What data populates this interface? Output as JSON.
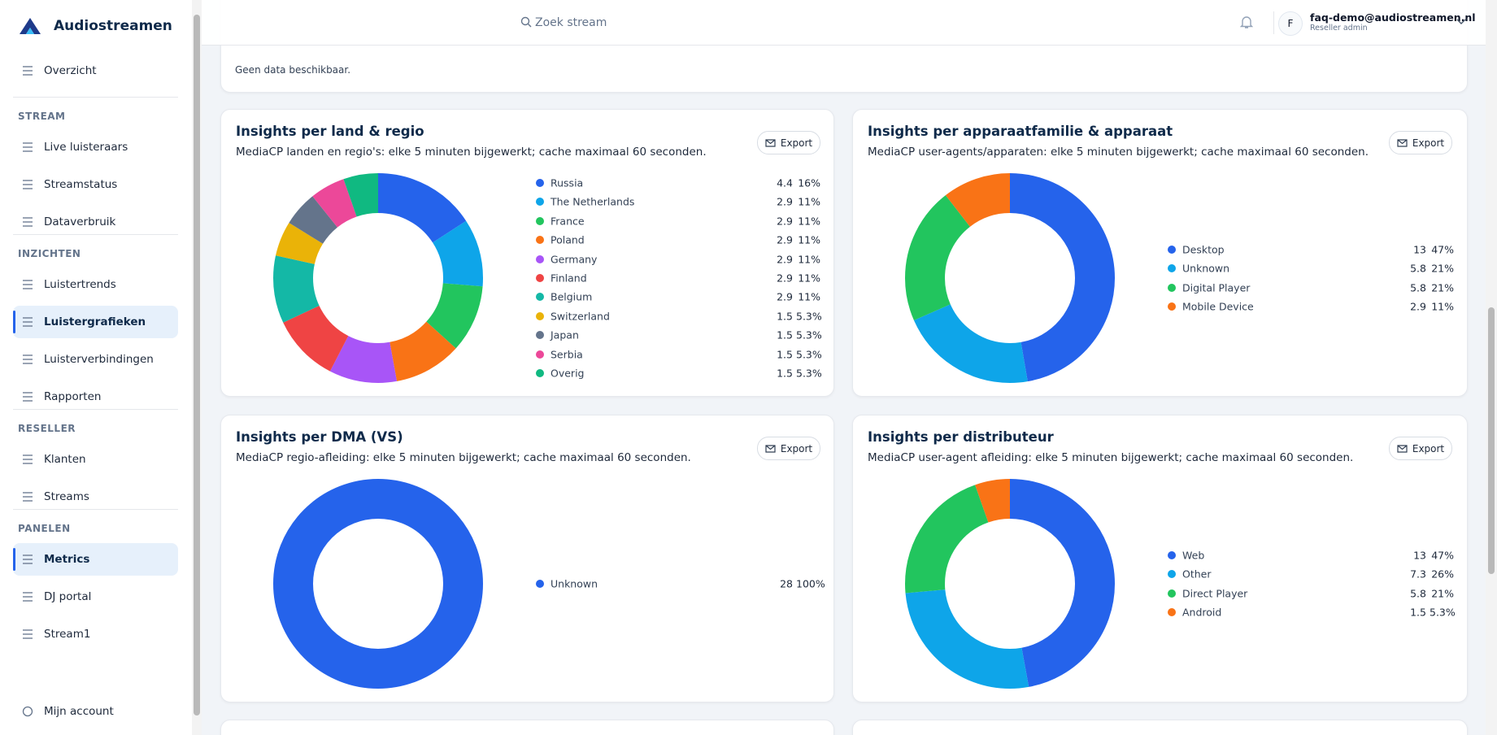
{
  "sidebar": {
    "brand": "Audiostreamen",
    "top": [
      {
        "label": "Overzicht"
      }
    ],
    "sections": [
      {
        "title": "STREAM",
        "items": [
          {
            "label": "Live luisteraars"
          },
          {
            "label": "Streamstatus"
          },
          {
            "label": "Dataverbruik"
          }
        ]
      },
      {
        "title": "INZICHTEN",
        "items": [
          {
            "label": "Luistertrends"
          },
          {
            "label": "Luistergrafieken",
            "active": true
          },
          {
            "label": "Luisterverbindingen"
          },
          {
            "label": "Rapporten"
          }
        ]
      },
      {
        "title": "RESELLER",
        "items": [
          {
            "label": "Klanten"
          },
          {
            "label": "Streams"
          }
        ]
      },
      {
        "title": "PANELEN",
        "items": [
          {
            "label": "Metrics",
            "active": true
          },
          {
            "label": "DJ portal"
          },
          {
            "label": "Stream1"
          }
        ]
      }
    ],
    "account": "Mijn account"
  },
  "header": {
    "search": "Zoek stream",
    "avatar": "F",
    "email": "faq-demo@audiostreamen.nl",
    "role": "Reseller admin"
  },
  "empty_panel": {
    "message": "Geen data beschikbaar."
  },
  "panels": [
    {
      "title": "Insights per land & regio",
      "subtitle": "MediaCP landen en regio's: elke 5 minuten bijgewerkt; cache maximaal 60 seconden.",
      "button": "Export",
      "chart_data": {
        "type": "donut",
        "categories": [
          "Russia",
          "The Netherlands",
          "France",
          "Poland",
          "Germany",
          "Finland",
          "Belgium",
          "Switzerland",
          "Japan",
          "Serbia",
          "Overig"
        ],
        "values": [
          4.4,
          2.9,
          2.9,
          2.9,
          2.9,
          2.9,
          2.9,
          1.5,
          1.5,
          1.5,
          1.5
        ],
        "shares": [
          "16%",
          "11%",
          "11%",
          "11%",
          "11%",
          "11%",
          "11%",
          "5.3%",
          "5.3%",
          "5.3%",
          "5.3%"
        ],
        "colors": [
          "#2563eb",
          "#0ea5e9",
          "#22c55e",
          "#f97316",
          "#a855f7",
          "#ef4444",
          "#14b8a6",
          "#eab308",
          "#64748b",
          "#ec4899",
          "#10b981"
        ]
      }
    },
    {
      "title": "Insights per apparaatfamilie & apparaat",
      "subtitle": "MediaCP user-agents/apparaten: elke 5 minuten bijgewerkt; cache maximaal 60 seconden.",
      "button": "Export",
      "chart_data": {
        "type": "donut",
        "categories": [
          "Desktop",
          "Unknown",
          "Digital Player",
          "Mobile Device"
        ],
        "values": [
          13,
          5.8,
          5.8,
          2.9
        ],
        "shares": [
          "47%",
          "21%",
          "21%",
          "11%"
        ],
        "colors": [
          "#2563eb",
          "#0ea5e9",
          "#22c55e",
          "#f97316"
        ]
      }
    },
    {
      "title": "Insights per DMA (VS)",
      "subtitle": "MediaCP regio-afleiding: elke 5 minuten bijgewerkt; cache maximaal 60 seconden.",
      "button": "Export",
      "chart_data": {
        "type": "donut",
        "categories": [
          "Unknown"
        ],
        "values": [
          28
        ],
        "shares": [
          "100%"
        ],
        "colors": [
          "#2563eb"
        ]
      }
    },
    {
      "title": "Insights per distributeur",
      "subtitle": "MediaCP user-agent afleiding: elke 5 minuten bijgewerkt; cache maximaal 60 seconden.",
      "button": "Export",
      "chart_data": {
        "type": "donut",
        "categories": [
          "Web",
          "Other",
          "Direct Player",
          "Android"
        ],
        "values": [
          13,
          7.3,
          5.8,
          1.5
        ],
        "shares": [
          "47%",
          "26%",
          "21%",
          "5.3%"
        ],
        "colors": [
          "#2563eb",
          "#0ea5e9",
          "#22c55e",
          "#f97316"
        ]
      }
    }
  ]
}
